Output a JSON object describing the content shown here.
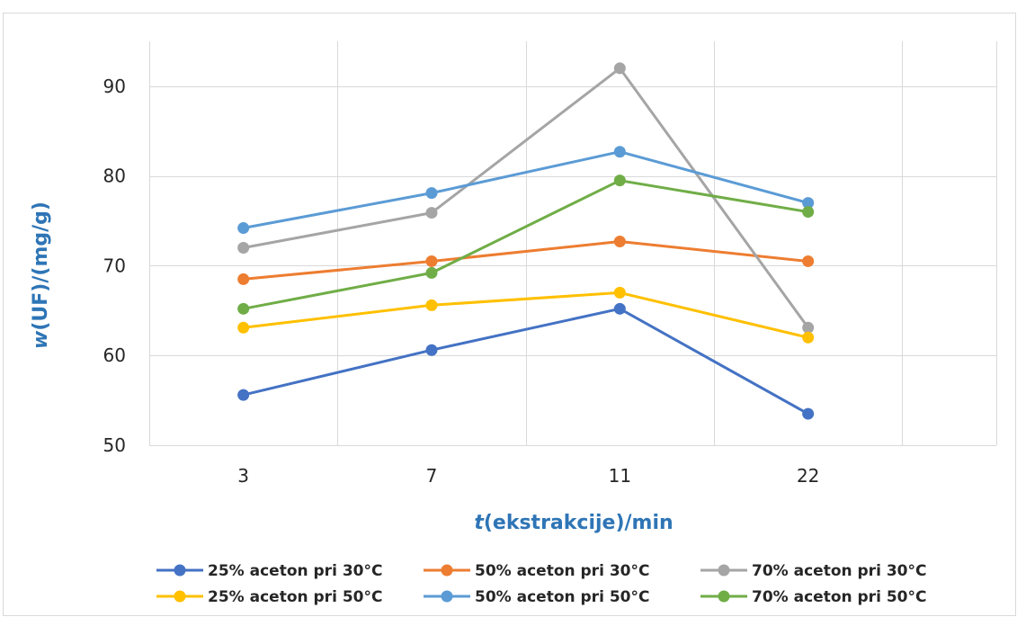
{
  "chart_data": {
    "type": "line",
    "categories": [
      "3",
      "7",
      "11",
      "22"
    ],
    "series": [
      {
        "name": "25% aceton pri 30°C",
        "color": "#4472C4",
        "values": [
          55.6,
          60.6,
          65.2,
          53.5
        ]
      },
      {
        "name": "50% aceton pri 30°C",
        "color": "#ED7D31",
        "values": [
          68.5,
          70.5,
          72.7,
          70.5
        ]
      },
      {
        "name": "70% aceton pri 30°C",
        "color": "#A5A5A5",
        "values": [
          72.0,
          75.9,
          92.0,
          63.1
        ]
      },
      {
        "name": "25% aceton pri 50°C",
        "color": "#FFC000",
        "values": [
          63.1,
          65.6,
          67.0,
          62.0
        ]
      },
      {
        "name": "50% aceton pri 50°C",
        "color": "#5B9BD5",
        "values": [
          74.2,
          78.1,
          82.7,
          77.0
        ]
      },
      {
        "name": "70% aceton pri 50°C",
        "color": "#70AD47",
        "values": [
          65.2,
          69.2,
          79.5,
          76.0
        ]
      }
    ],
    "ylim": [
      50,
      95
    ],
    "yticks": [
      50,
      60,
      70,
      80,
      90
    ],
    "xlabel": {
      "symbol": "t",
      "text": "(ekstrakcije)/min"
    },
    "ylabel": {
      "symbol": "w",
      "text": "(UF)/(mg/g)"
    },
    "axis_title_color": "#2E75B6",
    "grid": true,
    "legend_position": "bottom"
  }
}
